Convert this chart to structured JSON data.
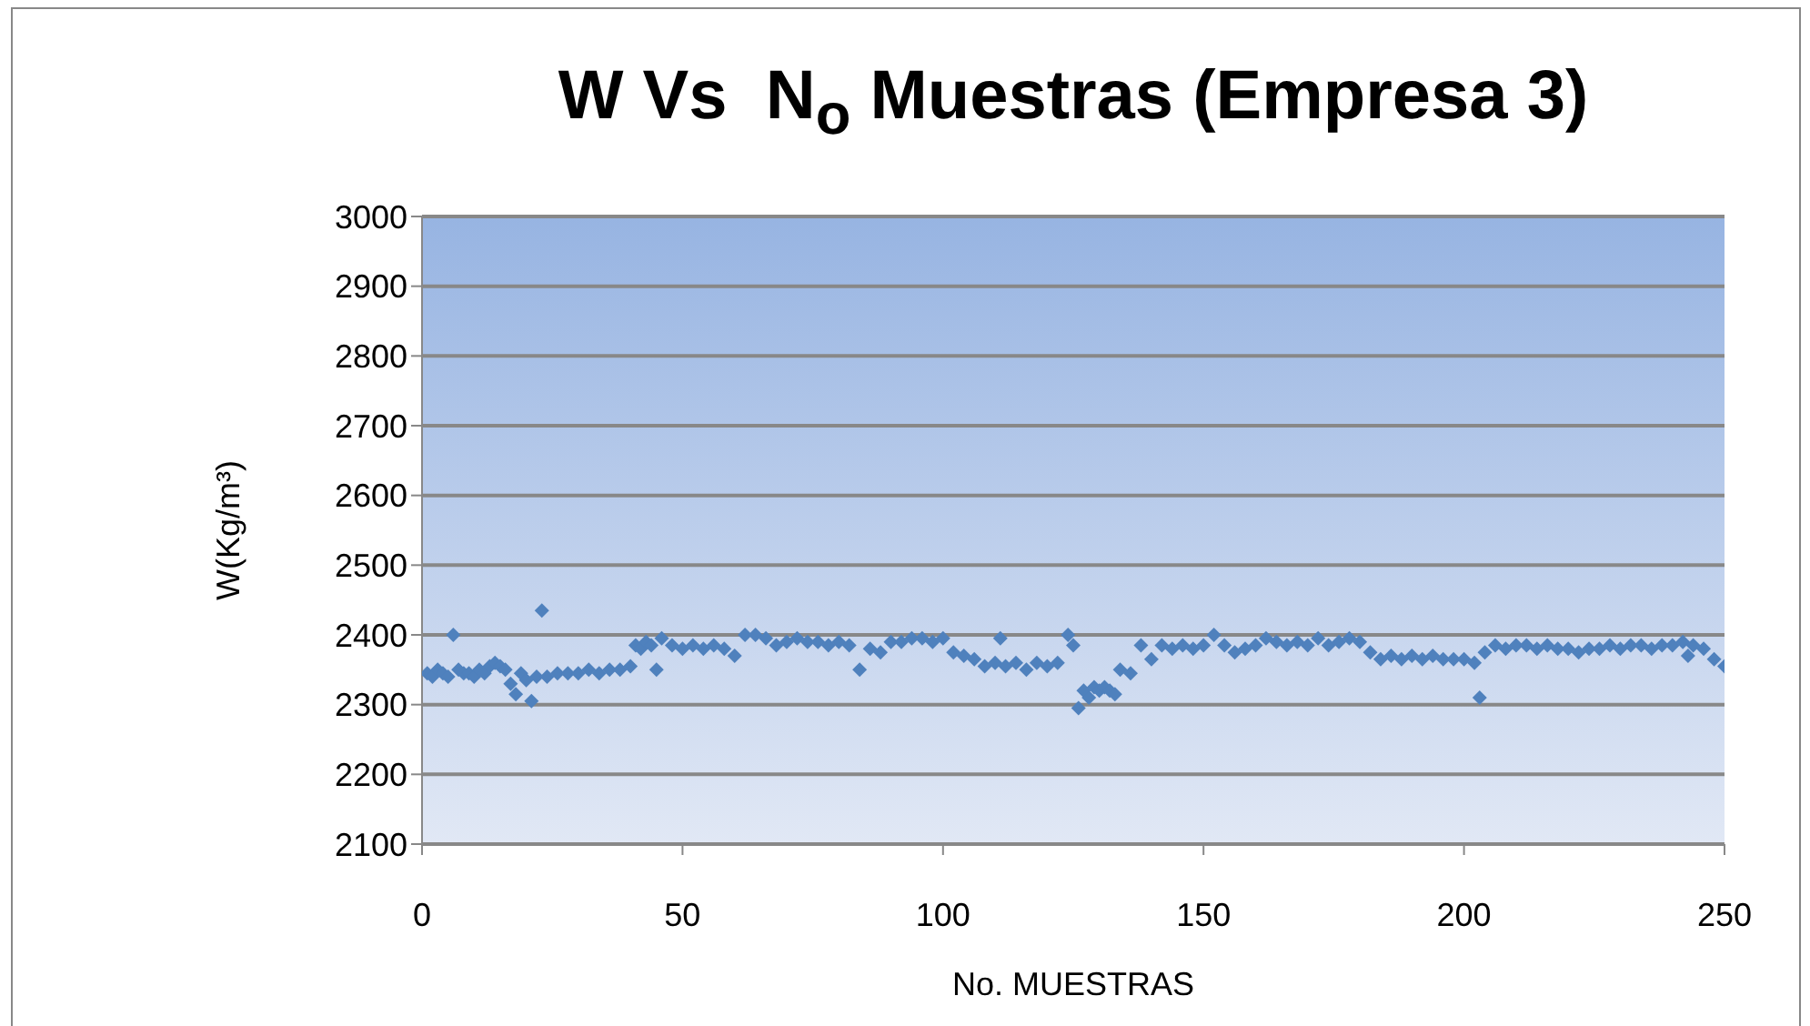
{
  "chart_data": {
    "type": "scatter",
    "title": "W Vs  N$_{o}$ Muestras (Empresa 3)",
    "xlabel": "No. MUESTRAS",
    "ylabel": "W(Kg/m³)",
    "xlim": [
      0,
      250
    ],
    "xticks": [
      0,
      50,
      100,
      150,
      200,
      250
    ],
    "ylim": [
      2100,
      3000
    ],
    "yticks": [
      2100,
      2200,
      2300,
      2400,
      2500,
      2600,
      2700,
      2800,
      2900,
      3000
    ],
    "grid": "y",
    "marker": "diamond",
    "legend": false,
    "series": [
      {
        "color": "#4f81bd",
        "x": [
          1,
          2,
          3,
          4,
          5,
          6,
          7,
          8,
          9,
          10,
          11,
          12,
          13,
          14,
          15,
          16,
          17,
          18,
          19,
          20,
          21,
          22,
          23,
          24,
          26,
          28,
          30,
          32,
          34,
          36,
          38,
          40,
          41,
          42,
          43,
          44,
          45,
          46,
          48,
          50,
          52,
          54,
          56,
          58,
          60,
          62,
          64,
          66,
          68,
          70,
          72,
          74,
          76,
          78,
          80,
          82,
          84,
          86,
          88,
          90,
          92,
          94,
          96,
          98,
          100,
          102,
          104,
          106,
          108,
          110,
          111,
          112,
          114,
          116,
          118,
          120,
          122,
          124,
          125,
          126,
          127,
          128,
          129,
          130,
          131,
          132,
          133,
          134,
          136,
          138,
          140,
          142,
          144,
          146,
          148,
          150,
          152,
          154,
          156,
          158,
          160,
          162,
          164,
          166,
          168,
          170,
          172,
          174,
          176,
          178,
          180,
          182,
          184,
          186,
          188,
          190,
          192,
          194,
          196,
          198,
          200,
          202,
          203,
          204,
          206,
          208,
          210,
          212,
          214,
          216,
          218,
          220,
          222,
          224,
          226,
          228,
          230,
          232,
          234,
          236,
          238,
          240,
          242,
          243,
          244,
          246,
          248,
          250
        ],
        "values": [
          2345,
          2340,
          2350,
          2345,
          2340,
          2400,
          2350,
          2345,
          2345,
          2340,
          2350,
          2345,
          2355,
          2360,
          2355,
          2350,
          2330,
          2315,
          2345,
          2335,
          2305,
          2340,
          2435,
          2340,
          2345,
          2345,
          2345,
          2350,
          2345,
          2350,
          2350,
          2355,
          2385,
          2380,
          2390,
          2385,
          2350,
          2395,
          2385,
          2380,
          2385,
          2380,
          2385,
          2380,
          2370,
          2400,
          2400,
          2395,
          2385,
          2390,
          2395,
          2390,
          2390,
          2385,
          2390,
          2385,
          2350,
          2380,
          2375,
          2390,
          2390,
          2395,
          2395,
          2390,
          2395,
          2375,
          2370,
          2365,
          2355,
          2360,
          2395,
          2355,
          2360,
          2350,
          2360,
          2355,
          2360,
          2400,
          2385,
          2295,
          2320,
          2310,
          2325,
          2320,
          2325,
          2320,
          2315,
          2350,
          2345,
          2385,
          2365,
          2385,
          2380,
          2385,
          2380,
          2385,
          2400,
          2385,
          2375,
          2380,
          2385,
          2395,
          2390,
          2385,
          2390,
          2385,
          2395,
          2385,
          2390,
          2395,
          2390,
          2375,
          2365,
          2370,
          2365,
          2370,
          2365,
          2370,
          2365,
          2365,
          2365,
          2360,
          2310,
          2375,
          2385,
          2380,
          2385,
          2385,
          2380,
          2385,
          2380,
          2380,
          2375,
          2380,
          2380,
          2385,
          2380,
          2385,
          2385,
          2380,
          2385,
          2385,
          2390,
          2370,
          2385,
          2380,
          2365,
          2355
        ]
      }
    ]
  }
}
